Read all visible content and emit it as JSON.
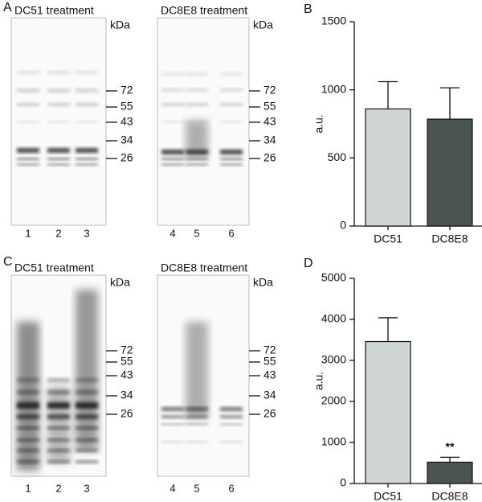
{
  "panel_labels": [
    "A",
    "B",
    "C",
    "D"
  ],
  "blots": [
    {
      "title": "DC51 treatment",
      "unit": "kDa",
      "markers": [
        72,
        55,
        43,
        34,
        26
      ],
      "lanes": [
        1,
        2,
        3
      ]
    },
    {
      "title": "DC8E8 treatment",
      "unit": "kDa",
      "markers": [
        72,
        55,
        43,
        34,
        26
      ],
      "lanes": [
        4,
        5,
        6
      ]
    },
    {
      "title": "DC51 treatment",
      "unit": "kDa",
      "markers": [
        72,
        55,
        43,
        34,
        26
      ],
      "lanes": [
        1,
        2,
        3
      ]
    },
    {
      "title": "DC8E8 treatment",
      "unit": "kDa",
      "markers": [
        72,
        55,
        43,
        34,
        26
      ],
      "lanes": [
        4,
        5,
        6
      ]
    }
  ],
  "chart_data": [
    {
      "type": "bar",
      "categories": [
        "DC51",
        "DC8E8"
      ],
      "values": [
        860,
        785
      ],
      "errors": [
        200,
        230
      ],
      "colors": [
        "#cfd6d4",
        "#4a5553"
      ],
      "ylabel": "a.u.",
      "ylim": [
        0,
        1500
      ],
      "yticks": [
        0,
        500,
        1000,
        1500
      ]
    },
    {
      "type": "bar",
      "categories": [
        "DC51",
        "DC8E8"
      ],
      "values": [
        3460,
        520
      ],
      "errors": [
        580,
        120
      ],
      "value_annotations": [
        null,
        "**"
      ],
      "colors": [
        "#cfd6d4",
        "#4a5553"
      ],
      "ylabel": "a.u.",
      "ylim": [
        0,
        5000
      ],
      "yticks": [
        0,
        1000,
        2000,
        3000,
        4000,
        5000
      ]
    }
  ]
}
